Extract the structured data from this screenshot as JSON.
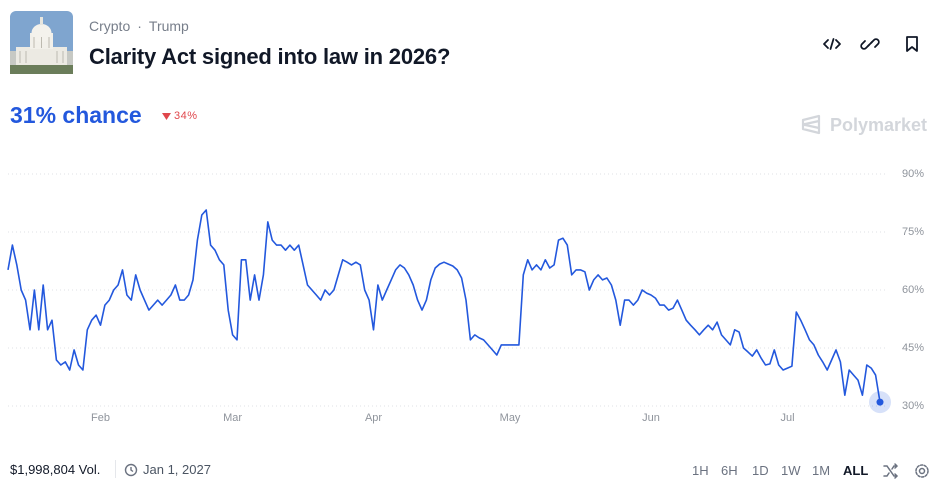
{
  "header": {
    "category": "Crypto",
    "tag": "Trump",
    "title": "Clarity Act signed into law in 2026?"
  },
  "headline": {
    "chance": "31% chance",
    "change": "34%"
  },
  "brand": "Polymarket",
  "chart_data": {
    "type": "line",
    "color": "#2358dd",
    "values": [
      65.2,
      71.6,
      66.5,
      60.0,
      57.4,
      49.7,
      60.0,
      49.7,
      61.3,
      49.7,
      52.2,
      41.9,
      40.6,
      41.4,
      39.3,
      44.5,
      40.6,
      39.3,
      49.7,
      52.2,
      53.5,
      50.9,
      56.1,
      57.4,
      60.0,
      61.3,
      65.2,
      58.7,
      57.4,
      63.9,
      60.0,
      57.4,
      54.8,
      56.1,
      57.4,
      56.1,
      57.4,
      58.7,
      61.3,
      57.4,
      57.4,
      58.7,
      62.6,
      72.9,
      79.4,
      80.7,
      71.6,
      70.3,
      67.8,
      66.5,
      54.8,
      48.4,
      47.1,
      67.8,
      67.8,
      57.4,
      63.9,
      57.4,
      63.9,
      77.6,
      72.9,
      71.6,
      71.6,
      70.3,
      71.6,
      70.3,
      71.6,
      66.5,
      61.3,
      60.0,
      58.7,
      57.4,
      60.0,
      58.7,
      60.0,
      63.9,
      67.8,
      67.2,
      66.5,
      67.2,
      66.5,
      60.0,
      57.4,
      49.7,
      61.3,
      57.4,
      60.0,
      62.6,
      65.2,
      66.5,
      65.7,
      63.9,
      61.3,
      57.4,
      54.8,
      57.4,
      62.6,
      65.7,
      66.7,
      67.2,
      66.7,
      66.2,
      65.2,
      63.1,
      57.4,
      47.1,
      48.4,
      47.6,
      47.1,
      45.8,
      44.5,
      43.2,
      45.8,
      45.8,
      45.8,
      45.8,
      45.8,
      63.9,
      67.8,
      65.2,
      66.5,
      65.2,
      67.8,
      65.7,
      66.5,
      72.9,
      73.4,
      71.6,
      63.9,
      65.2,
      65.2,
      64.7,
      60.0,
      62.6,
      63.9,
      62.6,
      63.1,
      61.3,
      57.4,
      50.9,
      57.4,
      57.4,
      56.1,
      57.4,
      60.0,
      59.2,
      58.7,
      57.9,
      56.1,
      56.1,
      54.8,
      55.3,
      57.4,
      54.8,
      52.2,
      50.9,
      49.7,
      48.4,
      49.7,
      50.9,
      49.7,
      51.7,
      48.4,
      47.1,
      45.8,
      49.7,
      49.1,
      45.0,
      44.0,
      42.9,
      44.5,
      42.4,
      40.6,
      40.9,
      44.5,
      40.6,
      39.3,
      39.8,
      40.3,
      54.3,
      52.2,
      49.7,
      47.1,
      45.8,
      43.2,
      41.4,
      39.3,
      41.9,
      44.5,
      41.4,
      32.8,
      39.3,
      38.0,
      36.7,
      32.8,
      40.6,
      39.8,
      38.0,
      31
    ],
    "xlim": [
      0,
      198
    ],
    "xticks": [
      {
        "value": 21,
        "label": "Feb"
      },
      {
        "value": 51,
        "label": "Mar"
      },
      {
        "value": 83,
        "label": "Apr"
      },
      {
        "value": 114,
        "label": "May"
      },
      {
        "value": 146,
        "label": "Jun"
      },
      {
        "value": 177,
        "label": "Jul"
      }
    ],
    "ylim": [
      30,
      90
    ],
    "yticks": [
      {
        "value": 30,
        "label": "30%"
      },
      {
        "value": 45,
        "label": "45%"
      },
      {
        "value": 60,
        "label": "60%"
      },
      {
        "value": 75,
        "label": "75%"
      },
      {
        "value": 90,
        "label": "90%"
      }
    ],
    "grid": true
  },
  "footer": {
    "volume": "$1,998,804 Vol.",
    "end_date": "Jan 1, 2027",
    "ranges": [
      "1H",
      "6H",
      "1D",
      "1W",
      "1M",
      "ALL"
    ],
    "active_range": 5
  }
}
